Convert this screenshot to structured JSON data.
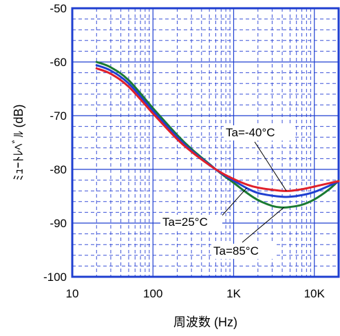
{
  "chart_data": {
    "type": "line",
    "xlabel": "周波数 (Hz)",
    "ylabel": "ﾐｭｰﾄﾚﾍﾞﾙ (dB)",
    "x_scale": "log",
    "xlim": [
      10,
      20000
    ],
    "ylim": [
      -100,
      -50
    ],
    "x_ticks": [
      10,
      100,
      1000,
      10000
    ],
    "x_tick_labels": [
      "10",
      "100",
      "1K",
      "10K"
    ],
    "y_ticks": [
      -100,
      -90,
      -80,
      -70,
      -60,
      -50
    ],
    "y_tick_labels": [
      "-100",
      "-90",
      "-80",
      "-70",
      "-60",
      "-50"
    ],
    "grid": true,
    "series": [
      {
        "name": "Ta=-40°C",
        "color": "#e0202a",
        "x": [
          20,
          30,
          50,
          100,
          200,
          300,
          500,
          700,
          1000,
          1500,
          2000,
          3000,
          4000,
          5000,
          7000,
          10000,
          15000,
          20000
        ],
        "y": [
          -61.2,
          -62.2,
          -64.6,
          -69.6,
          -74.4,
          -76.7,
          -79.2,
          -80.6,
          -81.8,
          -82.9,
          -83.4,
          -83.8,
          -84.0,
          -84.0,
          -83.7,
          -83.2,
          -82.6,
          -82.2
        ]
      },
      {
        "name": "Ta=25°C",
        "color": "#1f3fd0",
        "x": [
          20,
          30,
          50,
          100,
          200,
          300,
          500,
          700,
          1000,
          1500,
          2000,
          3000,
          4000,
          5000,
          7000,
          10000,
          15000,
          20000
        ],
        "y": [
          -60.6,
          -61.6,
          -64.0,
          -69.1,
          -74.0,
          -76.5,
          -79.1,
          -80.7,
          -82.1,
          -83.6,
          -84.4,
          -84.9,
          -85.1,
          -85.1,
          -84.8,
          -84.2,
          -83.1,
          -82.2
        ]
      },
      {
        "name": "Ta=85°C",
        "color": "#1a7a32",
        "x": [
          20,
          30,
          50,
          100,
          200,
          300,
          500,
          700,
          1000,
          1500,
          2000,
          3000,
          4000,
          5000,
          7000,
          10000,
          15000,
          20000
        ],
        "y": [
          -60.0,
          -61.0,
          -63.4,
          -68.6,
          -73.6,
          -76.2,
          -79.0,
          -80.8,
          -82.5,
          -84.5,
          -85.7,
          -86.8,
          -87.1,
          -87.0,
          -86.6,
          -85.6,
          -83.8,
          -82.1
        ]
      }
    ],
    "annotations": [
      {
        "text": "Ta=-40°C",
        "series": 0,
        "at_x": 4500
      },
      {
        "text": "Ta=25°C",
        "series": 1,
        "at_x": 1450
      },
      {
        "text": "Ta=85°C",
        "series": 2,
        "at_x": 4200
      }
    ]
  }
}
